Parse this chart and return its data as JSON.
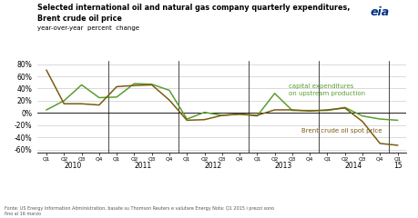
{
  "title_line1": "Selected international oil and natural gas company quarterly expenditures,",
  "title_line2": "Brent crude oil price",
  "subtitle": "year-over-year  percent  change",
  "capex_color": "#5a9e32",
  "brent_color": "#7a5c10",
  "background_color": "#ffffff",
  "ylim": [
    -65,
    85
  ],
  "yticks": [
    -60,
    -40,
    -20,
    0,
    20,
    40,
    60,
    80
  ],
  "footnote": "Fonte: US Energy Information Administration, basate su Thomson Reuters e valutare Energy Nota: Q1 2015 i prezzi sono\nfino al 16 marzo",
  "capex_label": "capital expenditures\non upstream production",
  "brent_label": "Brent crude oil spot price",
  "quarters": [
    "Q1",
    "Q2",
    "Q3",
    "Q4",
    "Q1",
    "Q2",
    "Q3",
    "Q4",
    "Q1",
    "Q2",
    "Q3",
    "Q4",
    "Q1",
    "Q2",
    "Q3",
    "Q4",
    "Q1",
    "Q2",
    "Q3",
    "Q4",
    "Q1"
  ],
  "years": [
    "2010",
    "2011",
    "2012",
    "2013",
    "2014",
    "15"
  ],
  "year_center_indices": [
    1.5,
    5.5,
    9.5,
    13.5,
    17.5,
    20.0
  ],
  "capex_data": [
    5,
    20,
    46,
    25,
    26,
    48,
    47,
    37,
    -10,
    1,
    -4,
    -2,
    -5,
    32,
    4,
    4,
    4,
    9,
    -5,
    -10,
    -12
  ],
  "brent_data": [
    70,
    15,
    15,
    13,
    43,
    45,
    46,
    21,
    -12,
    -11,
    -4,
    -2,
    -4,
    5,
    5,
    3,
    5,
    8,
    -14,
    -50,
    -53
  ],
  "divider_indices": [
    3.5,
    7.5,
    11.5,
    15.5,
    19.5
  ]
}
